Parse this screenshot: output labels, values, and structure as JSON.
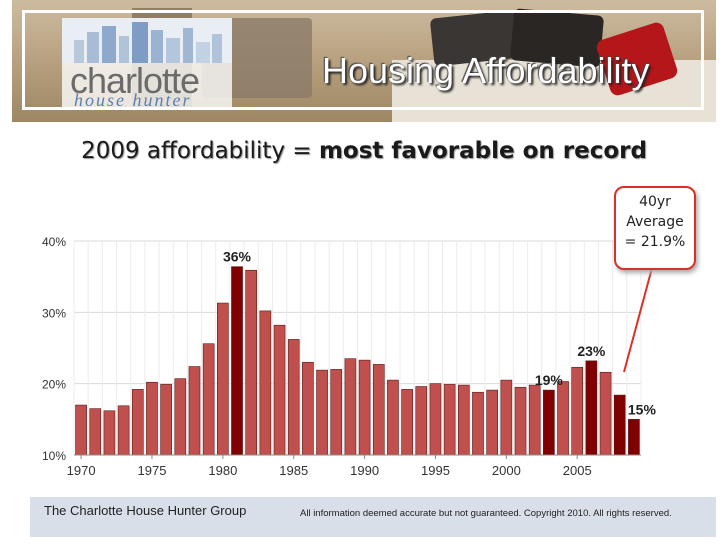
{
  "banner": {
    "logo_top": "charlotte",
    "logo_bottom": "house hunter",
    "title": "Housing Affordability"
  },
  "headline": {
    "prefix": "2009 affordability = ",
    "emphasis": "most favorable on record"
  },
  "callout": {
    "line1": "40yr",
    "line2": "Average",
    "line3": "= 21.9%"
  },
  "footer": {
    "left": "The Charlotte House Hunter Group",
    "right": "All information deemed accurate but not guaranteed.  Copyright 2010.  All rights reserved."
  },
  "colors": {
    "bar": "#c0504d",
    "bar_highlight": "#800000",
    "gridline": "#d9d9d9"
  },
  "chart_data": {
    "type": "bar",
    "categories": [
      1970,
      1971,
      1972,
      1973,
      1974,
      1975,
      1976,
      1977,
      1978,
      1979,
      1980,
      1981,
      1982,
      1983,
      1984,
      1985,
      1986,
      1987,
      1988,
      1989,
      1990,
      1991,
      1992,
      1993,
      1994,
      1995,
      1996,
      1997,
      1998,
      1999,
      2000,
      2001,
      2002,
      2003,
      2004,
      2005,
      2006,
      2007,
      2008,
      2009
    ],
    "values": [
      17.0,
      16.5,
      16.2,
      16.9,
      19.2,
      20.2,
      19.9,
      20.7,
      22.4,
      25.6,
      31.3,
      36.4,
      35.9,
      30.2,
      28.2,
      26.2,
      23.0,
      21.9,
      22.0,
      23.5,
      23.3,
      22.7,
      20.5,
      19.2,
      19.6,
      20.0,
      19.9,
      19.8,
      18.8,
      19.1,
      20.5,
      19.5,
      19.8,
      19.1,
      20.3,
      22.3,
      23.2,
      21.6,
      18.4,
      15.0
    ],
    "highlighted": [
      1981,
      2003,
      2006,
      2008,
      2009
    ],
    "data_labels": [
      {
        "year": 1981,
        "text": "36%"
      },
      {
        "year": 2003,
        "text": "19%"
      },
      {
        "year": 2006,
        "text": "23%"
      },
      {
        "year": 2009,
        "text": "15%"
      }
    ],
    "x_tick_labels": [
      "1970",
      "1975",
      "1980",
      "1985",
      "1990",
      "1995",
      "2000",
      "2005"
    ],
    "y_tick_labels": [
      "10%",
      "20%",
      "30%",
      "40%"
    ],
    "ylim": [
      10,
      40
    ],
    "grid": true,
    "title": "",
    "xlabel": "",
    "ylabel": ""
  }
}
